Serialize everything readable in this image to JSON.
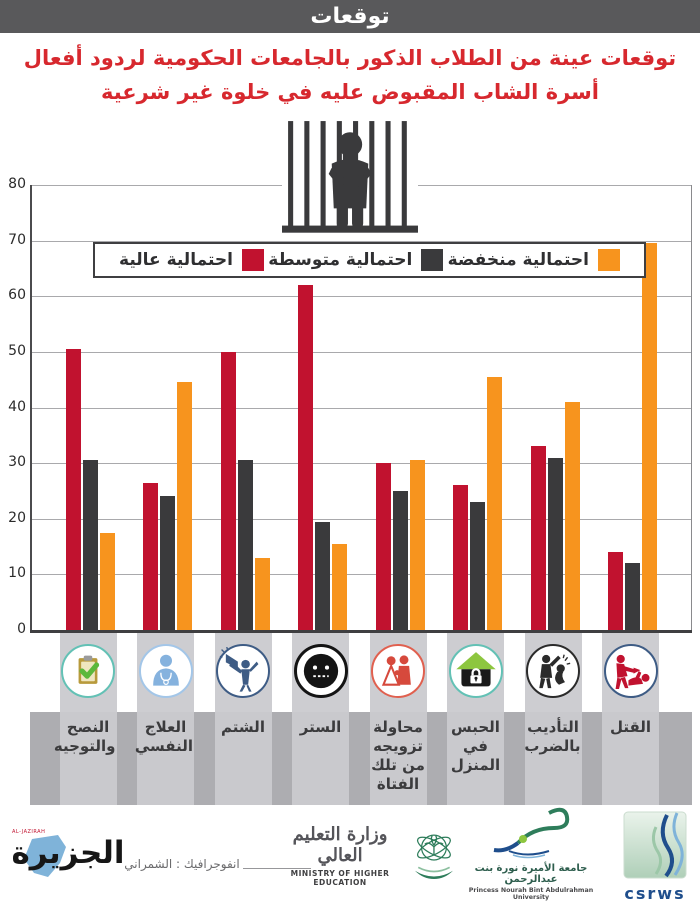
{
  "header": {
    "banner": "توقعات"
  },
  "title": {
    "line1": "توقعات عينة من الطلاب الذكور بالجامعات الحكومية لردود أفعال",
    "line2": "أسرة الشاب المقبوض عليه في خلوة غير شرعية"
  },
  "legend": [
    {
      "label": "احتمالية منخفضة",
      "color": "#F7941E"
    },
    {
      "label": "احتمالية متوسطة",
      "color": "#3A3A3C"
    },
    {
      "label": "احتمالية عالية",
      "color": "#C1122F"
    }
  ],
  "chart_data": {
    "type": "bar",
    "title": "توقعات عينة من الطلاب الذكور بالجامعات الحكومية لردود أفعال أسرة الشاب المقبوض عليه في خلوة غير شرعية",
    "categories": [
      "النصح والتوجيه",
      "العلاج النفسي",
      "الشتم",
      "الستر",
      "محاولة تزويجه من تلك الفتاة",
      "الحبس في المنزل",
      "التأديب بالضرب",
      "القتل"
    ],
    "series": [
      {
        "name": "احتمالية عالية",
        "color": "#C1122F",
        "values": [
          50.5,
          26.5,
          50,
          62,
          30,
          26,
          33,
          14
        ]
      },
      {
        "name": "احتمالية متوسطة",
        "color": "#3A3A3C",
        "values": [
          30.5,
          24,
          30.5,
          19.5,
          25,
          23,
          31,
          12
        ]
      },
      {
        "name": "احتمالية منخفضة",
        "color": "#F7941E",
        "values": [
          17.5,
          44.5,
          13,
          15.5,
          30.5,
          45.5,
          41,
          69.5
        ]
      }
    ],
    "ylim": [
      0,
      80
    ],
    "ytick_step": 10,
    "grid": true,
    "legend_position": "top",
    "category_icons": [
      "clipboard-check-icon",
      "psychologist-icon",
      "megaphone-person-icon",
      "silent-face-icon",
      "wedding-couple-icon",
      "locked-house-icon",
      "beating-icon",
      "killing-icon"
    ]
  },
  "footer": {
    "aljazirah_en": "AL-JAZIRAH",
    "aljazirah_ar": "الجزيرة",
    "credit": "انفوجرافيك : الشمراني",
    "ministry_ar": "وزارة التعليم العالي",
    "ministry_en": "MINISTRY OF HIGHER EDUCATION",
    "pnu_ar": "جامعة الأميرة نورة بنت عبدالرحمن",
    "pnu_en": "Princess Nourah Bint Abdulrahman University",
    "csrws": "csrws"
  }
}
